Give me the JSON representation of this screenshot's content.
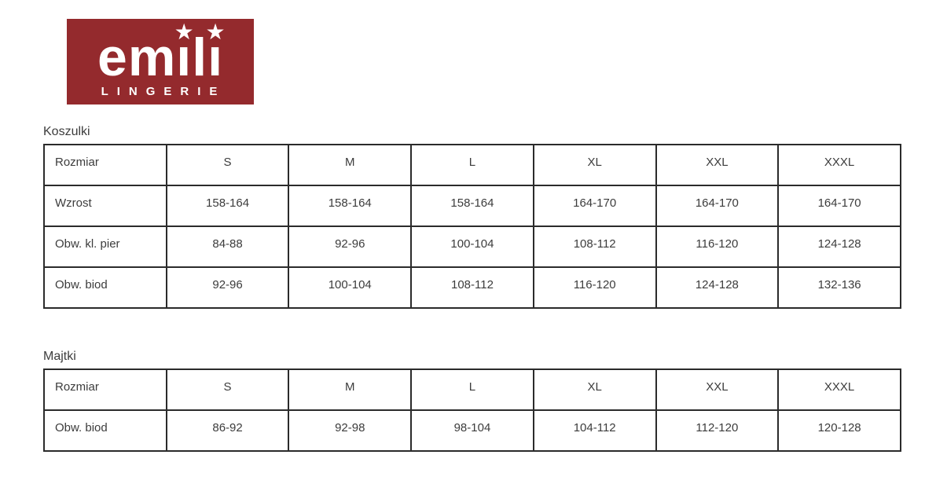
{
  "logo": {
    "brand": "emili",
    "brand_segments": [
      "em",
      "ı",
      "l",
      "ı"
    ],
    "star_glyph": "★",
    "subtitle": "LINGERIE",
    "bg_color": "#942a2d",
    "text_color": "#ffffff"
  },
  "tables": [
    {
      "title": "Koszulki",
      "header": [
        "Rozmiar",
        "S",
        "M",
        "L",
        "XL",
        "XXL",
        "XXXL"
      ],
      "rows": [
        [
          "Wzrost",
          "158-164",
          "158-164",
          "158-164",
          "164-170",
          "164-170",
          "164-170"
        ],
        [
          "Obw. kl. pier",
          "84-88",
          "92-96",
          "100-104",
          "108-112",
          "116-120",
          "124-128"
        ],
        [
          "Obw. biod",
          "92-96",
          "100-104",
          "108-112",
          "116-120",
          "124-128",
          "132-136"
        ]
      ]
    },
    {
      "title": "Majtki",
      "header": [
        "Rozmiar",
        "S",
        "M",
        "L",
        "XL",
        "XXL",
        "XXXL"
      ],
      "rows": [
        [
          "Obw. biod",
          "86-92",
          "92-98",
          "98-104",
          "104-112",
          "112-120",
          "120-128"
        ]
      ]
    }
  ]
}
